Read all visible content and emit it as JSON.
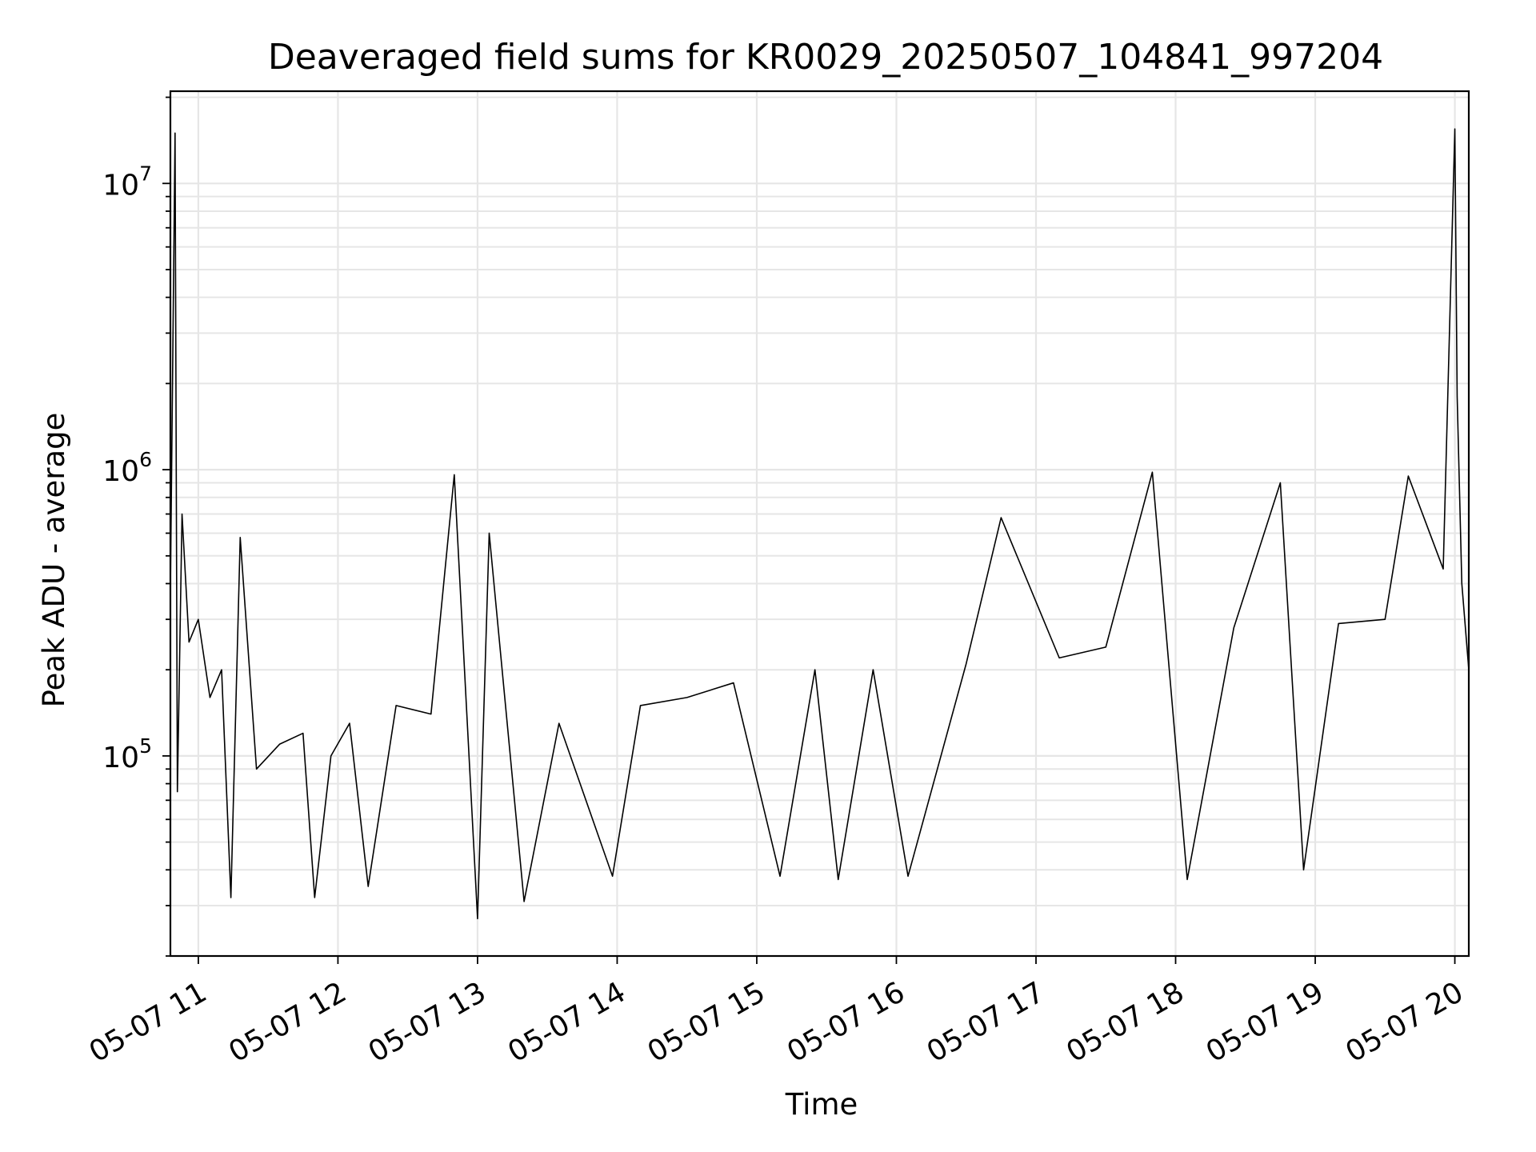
{
  "chart_data": {
    "type": "line",
    "title": "Deaveraged field sums for KR0029_20250507_104841_997204",
    "xlabel": "Time",
    "ylabel": "Peak ADU - average",
    "yscale": "log",
    "ylim": [
      20000,
      21000000
    ],
    "xlim": [
      "2025-05-07T10:48",
      "2025-05-07T20:06"
    ],
    "grid": true,
    "x_ticks": [
      {
        "value": "2025-05-07T11:00",
        "label": "05-07 11"
      },
      {
        "value": "2025-05-07T12:00",
        "label": "05-07 12"
      },
      {
        "value": "2025-05-07T13:00",
        "label": "05-07 13"
      },
      {
        "value": "2025-05-07T14:00",
        "label": "05-07 14"
      },
      {
        "value": "2025-05-07T15:00",
        "label": "05-07 15"
      },
      {
        "value": "2025-05-07T16:00",
        "label": "05-07 16"
      },
      {
        "value": "2025-05-07T17:00",
        "label": "05-07 17"
      },
      {
        "value": "2025-05-07T18:00",
        "label": "05-07 18"
      },
      {
        "value": "2025-05-07T19:00",
        "label": "05-07 19"
      },
      {
        "value": "2025-05-07T20:00",
        "label": "05-07 20"
      }
    ],
    "y_ticks": [
      {
        "value": 100000,
        "base": "10",
        "exp": "5"
      },
      {
        "value": 1000000,
        "base": "10",
        "exp": "6"
      },
      {
        "value": 10000000,
        "base": "10",
        "exp": "7"
      }
    ],
    "series": [
      {
        "color": "#000000",
        "points": [
          [
            "2025-05-07T10:48",
            380000
          ],
          [
            "2025-05-07T10:50",
            15000000
          ],
          [
            "2025-05-07T10:51",
            75000
          ],
          [
            "2025-05-07T10:53",
            700000
          ],
          [
            "2025-05-07T10:56",
            250000
          ],
          [
            "2025-05-07T11:00",
            300000
          ],
          [
            "2025-05-07T11:05",
            160000
          ],
          [
            "2025-05-07T11:10",
            200000
          ],
          [
            "2025-05-07T11:14",
            32000
          ],
          [
            "2025-05-07T11:18",
            580000
          ],
          [
            "2025-05-07T11:25",
            90000
          ],
          [
            "2025-05-07T11:35",
            110000
          ],
          [
            "2025-05-07T11:45",
            120000
          ],
          [
            "2025-05-07T11:50",
            32000
          ],
          [
            "2025-05-07T11:57",
            100000
          ],
          [
            "2025-05-07T12:05",
            130000
          ],
          [
            "2025-05-07T12:13",
            35000
          ],
          [
            "2025-05-07T12:25",
            150000
          ],
          [
            "2025-05-07T12:40",
            140000
          ],
          [
            "2025-05-07T12:50",
            960000
          ],
          [
            "2025-05-07T13:00",
            27000
          ],
          [
            "2025-05-07T13:05",
            600000
          ],
          [
            "2025-05-07T13:20",
            31000
          ],
          [
            "2025-05-07T13:35",
            130000
          ],
          [
            "2025-05-07T13:58",
            38000
          ],
          [
            "2025-05-07T14:10",
            150000
          ],
          [
            "2025-05-07T14:30",
            160000
          ],
          [
            "2025-05-07T14:50",
            180000
          ],
          [
            "2025-05-07T15:10",
            38000
          ],
          [
            "2025-05-07T15:25",
            200000
          ],
          [
            "2025-05-07T15:35",
            37000
          ],
          [
            "2025-05-07T15:50",
            200000
          ],
          [
            "2025-05-07T16:05",
            38000
          ],
          [
            "2025-05-07T16:30",
            210000
          ],
          [
            "2025-05-07T16:45",
            680000
          ],
          [
            "2025-05-07T17:10",
            220000
          ],
          [
            "2025-05-07T17:30",
            240000
          ],
          [
            "2025-05-07T17:50",
            980000
          ],
          [
            "2025-05-07T18:05",
            37000
          ],
          [
            "2025-05-07T18:25",
            280000
          ],
          [
            "2025-05-07T18:45",
            900000
          ],
          [
            "2025-05-07T18:55",
            40000
          ],
          [
            "2025-05-07T19:10",
            290000
          ],
          [
            "2025-05-07T19:30",
            300000
          ],
          [
            "2025-05-07T19:40",
            950000
          ],
          [
            "2025-05-07T19:55",
            450000
          ],
          [
            "2025-05-07T20:00",
            15500000
          ],
          [
            "2025-05-07T20:01",
            1800000
          ],
          [
            "2025-05-07T20:03",
            400000
          ],
          [
            "2025-05-07T20:06",
            200000
          ]
        ]
      }
    ]
  }
}
